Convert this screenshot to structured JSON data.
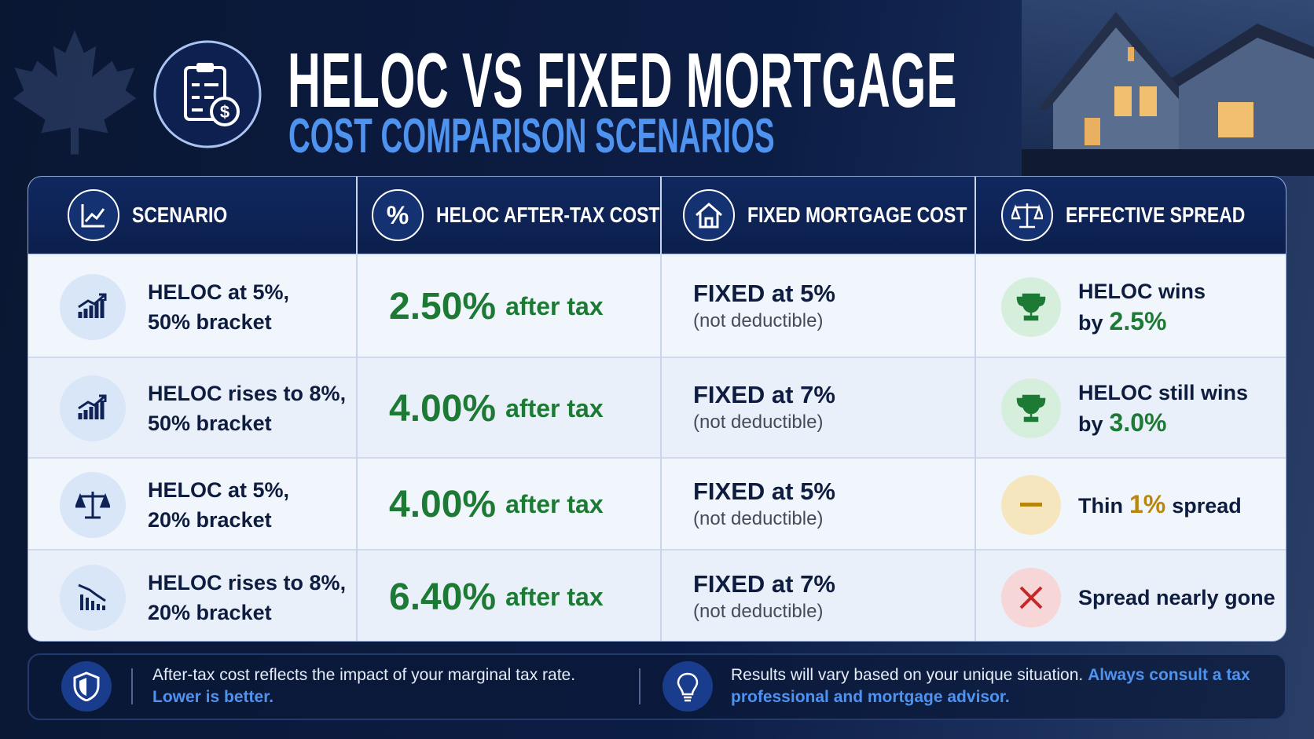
{
  "header": {
    "title": "HELOC VS FIXED MORTGAGE",
    "subtitle": "COST COMPARISON SCENARIOS"
  },
  "table": {
    "columns": [
      "SCENARIO",
      "HELOC AFTER-TAX COST",
      "FIXED MORTGAGE COST",
      "EFFECTIVE SPREAD"
    ],
    "rows": [
      {
        "scenario": [
          "HELOC at 5%,",
          "50% bracket"
        ],
        "heloc_cost": "2.50%",
        "heloc_note": "after tax",
        "fixed": "FIXED at 5%",
        "fixed_note": "(not deductible)",
        "spread": {
          "line1": "HELOC wins",
          "prefix": "by",
          "highlight": "2.5%"
        }
      },
      {
        "scenario": [
          "HELOC rises to 8%,",
          "50% bracket"
        ],
        "heloc_cost": "4.00%",
        "heloc_note": "after tax",
        "fixed": "FIXED at 7%",
        "fixed_note": "(not deductible)",
        "spread": {
          "line1": "HELOC still wins",
          "prefix": "by",
          "highlight": "3.0%"
        }
      },
      {
        "scenario": [
          "HELOC at 5%,",
          "20% bracket"
        ],
        "heloc_cost": "4.00%",
        "heloc_note": "after tax",
        "fixed": "FIXED at 5%",
        "fixed_note": "(not deductible)",
        "spread": {
          "prefix": "Thin",
          "highlight": "1%",
          "suffix": "spread"
        }
      },
      {
        "scenario": [
          "HELOC rises to 8%,",
          "20% bracket"
        ],
        "heloc_cost": "6.40%",
        "heloc_note": "after tax",
        "fixed": "FIXED at 7%",
        "fixed_note": "(not deductible)",
        "spread": {
          "line1": "Spread nearly gone"
        }
      }
    ]
  },
  "footer": {
    "note": {
      "text": "After-tax cost reflects the impact of your marginal tax rate.",
      "highlight": "Lower is better."
    },
    "advice": {
      "text": "Results will vary based on your unique situation.",
      "highlight": "Always consult a tax professional and mortgage advisor."
    }
  }
}
